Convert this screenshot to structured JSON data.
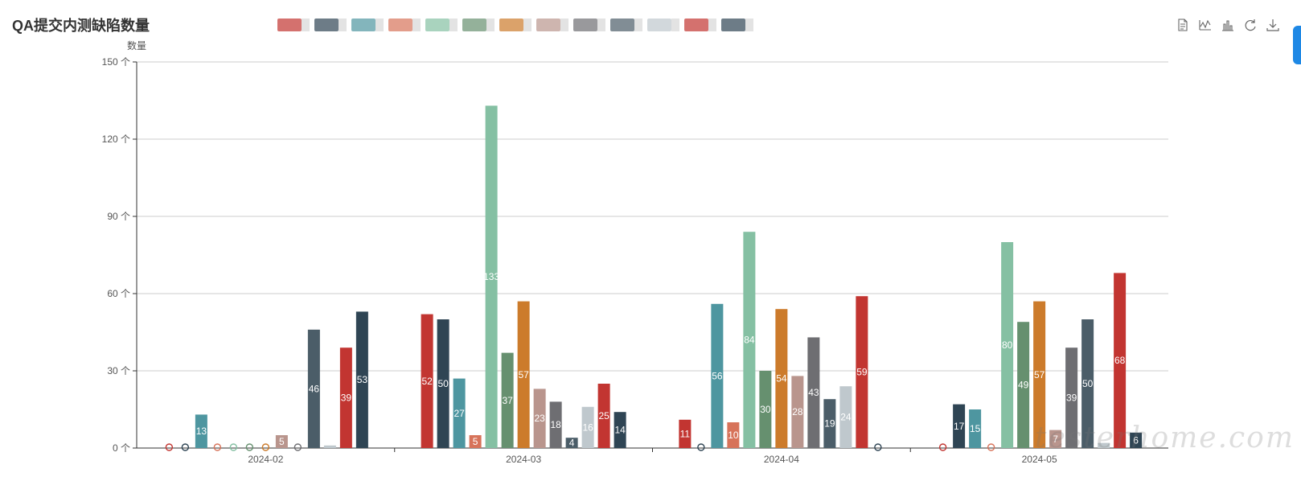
{
  "chart_data": {
    "type": "bar",
    "title": "QA提交内测缺陷数量",
    "ylabel": "数量",
    "y_unit": "个",
    "ylim": [
      0,
      150
    ],
    "yticks": [
      0,
      30,
      60,
      90,
      120,
      150
    ],
    "grid": true,
    "categories": [
      "2024-02",
      "2024-03",
      "2024-04",
      "2024-05"
    ],
    "colors": [
      "#c23531",
      "#2f4554",
      "#4e96a0",
      "#d7735a",
      "#85c0a3",
      "#66906f",
      "#cc7b2b",
      "#b9958d",
      "#6e6e72",
      "#4b5d68",
      "#bfc8cd"
    ],
    "series": [
      {
        "values": [
          0,
          52,
          11,
          0
        ]
      },
      {
        "values": [
          0,
          50,
          0,
          17
        ]
      },
      {
        "values": [
          13,
          27,
          56,
          15
        ]
      },
      {
        "values": [
          0,
          5,
          10,
          0
        ]
      },
      {
        "values": [
          0,
          133,
          84,
          80
        ]
      },
      {
        "values": [
          0,
          37,
          30,
          49
        ]
      },
      {
        "values": [
          0,
          57,
          54,
          57
        ]
      },
      {
        "values": [
          5,
          23,
          28,
          7
        ]
      },
      {
        "values": [
          0,
          18,
          43,
          39
        ]
      },
      {
        "values": [
          46,
          4,
          19,
          50
        ]
      },
      {
        "values": [
          1,
          16,
          24,
          2
        ]
      },
      {
        "values": [
          39,
          25,
          59,
          68
        ]
      },
      {
        "values": [
          53,
          14,
          0,
          6
        ]
      }
    ]
  },
  "toolbox": {
    "icons": [
      "data-view-icon",
      "line-chart-icon",
      "bar-chart-icon",
      "restore-icon",
      "download-icon"
    ]
  },
  "watermark": "testerhome.com"
}
